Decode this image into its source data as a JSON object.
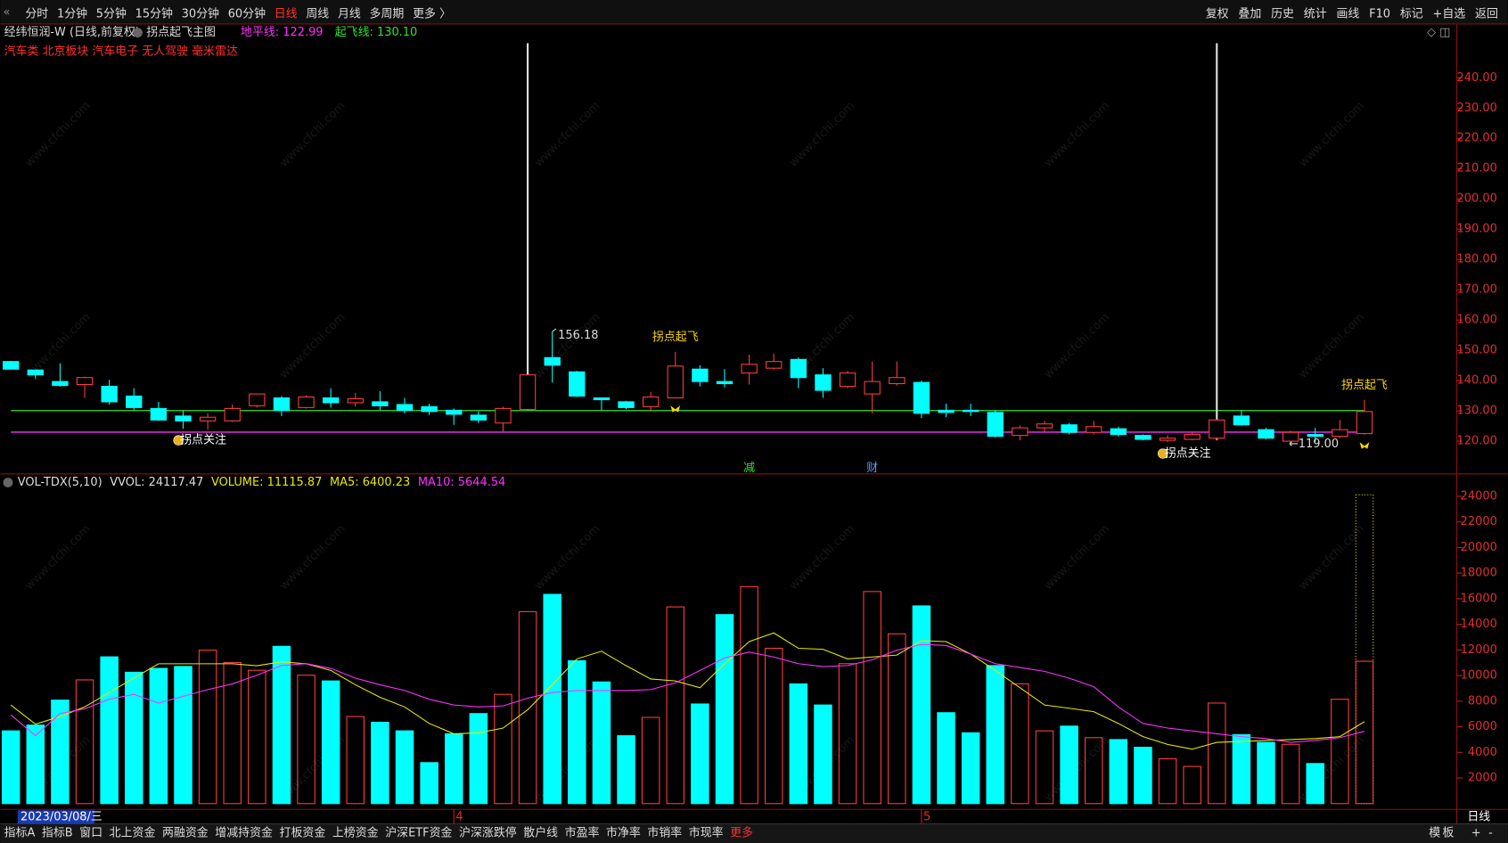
{
  "ui": {
    "toolbar_left": [
      "分时",
      "1分钟",
      "5分钟",
      "15分钟",
      "30分钟",
      "60分钟",
      "日线",
      "周线",
      "月线",
      "多周期",
      "更多 〉"
    ],
    "active_period_index": 6,
    "toolbar_right": [
      "复权",
      "叠加",
      "历史",
      "统计",
      "画线",
      "F10",
      "标记",
      "+自选",
      "返回"
    ],
    "stock": "经纬恒润-W (日线,前复权)",
    "indicator": "拐点起飞主图",
    "tags": "汽车类 北京板块 汽车电子 无人驾驶 毫米雷达",
    "cursor_date": "2023/03/08/三",
    "period_label": "日线",
    "bottom_tabs": [
      "指标A",
      "指标B",
      "窗口",
      "北上资金",
      "两融资金",
      "增减持资金",
      "打板资金",
      "上榜资金",
      "沪深ETF资金",
      "沪深涨跌停",
      "散户线",
      "市盈率",
      "市净率",
      "市销率",
      "市现率",
      "更多"
    ],
    "active_tab_index": 15,
    "bottom_right": [
      "模",
      "板",
      "+",
      "-"
    ],
    "watermark": "www.cfchi.com"
  },
  "chart_data": [
    {
      "type": "candlestick",
      "categories": [
        null,
        null,
        null,
        null,
        null,
        null,
        null,
        null,
        null,
        null,
        null,
        null,
        null,
        null,
        null,
        null,
        null,
        null,
        "4",
        null,
        null,
        null,
        null,
        null,
        null,
        null,
        null,
        null,
        null,
        null,
        null,
        null,
        null,
        null,
        null,
        null,
        null,
        "5",
        null,
        null,
        null,
        null,
        null,
        null,
        null,
        null,
        null,
        null,
        null,
        null,
        null,
        null,
        null,
        null,
        null,
        null
      ],
      "open": [
        146.3,
        143.5,
        139.7,
        138.7,
        138.1,
        134.9,
        130.8,
        128.3,
        126.7,
        126.7,
        131.7,
        134.3,
        131.1,
        134.3,
        132.7,
        133,
        132.1,
        131.4,
        130.2,
        128.6,
        126,
        130.5,
        147.6,
        142.9,
        134.3,
        133,
        131.4,
        134.3,
        143.8,
        139.7,
        142.5,
        144.1,
        147,
        141.9,
        138.1,
        135.6,
        139,
        139.4,
        130.2,
        130.2,
        129.5,
        121.9,
        124.4,
        125.4,
        122.9,
        124.1,
        121.9,
        120.3,
        120.6,
        121,
        128.3,
        123.8,
        120,
        122.2,
        121.6,
        122.5
      ],
      "high": [
        146.5,
        143.5,
        145.7,
        141.3,
        140.3,
        137.5,
        133,
        130.2,
        129.2,
        132.1,
        135.6,
        134.9,
        135.2,
        137.5,
        135.9,
        136.5,
        134.3,
        132.4,
        130.8,
        129.8,
        131.4,
        141.9,
        156.18,
        143.2,
        134.3,
        133.3,
        136.2,
        149.5,
        145.1,
        143.8,
        148.6,
        148.9,
        147.6,
        144.1,
        143.2,
        146.3,
        146.3,
        140,
        132.4,
        132.4,
        130.2,
        125.1,
        126.7,
        126,
        126.7,
        124.8,
        122.2,
        121.9,
        122.9,
        127.3,
        130.2,
        124.4,
        123.5,
        124.4,
        127,
        133.7
      ],
      "low": [
        143.5,
        140.5,
        138,
        134.3,
        132,
        130.2,
        126.7,
        124.1,
        123.8,
        126.3,
        131.1,
        128.3,
        130.8,
        131.1,
        131.4,
        130.2,
        129.2,
        128.6,
        125.4,
        126,
        123.2,
        130.2,
        139.4,
        134.6,
        130.2,
        130.5,
        129.8,
        134.3,
        138.1,
        137.8,
        138.7,
        143.5,
        137.5,
        134.3,
        137.5,
        129.2,
        138.4,
        127.6,
        127.9,
        128.3,
        121.3,
        120.3,
        123.2,
        122.2,
        122.2,
        121.6,
        120.3,
        119.7,
        120.3,
        120.3,
        125.1,
        120.6,
        119,
        119.7,
        121,
        122.2
      ],
      "close": [
        143.8,
        141.9,
        138.4,
        141,
        133,
        131.1,
        127,
        126.7,
        127.9,
        130.8,
        135.6,
        130.2,
        134.6,
        132.7,
        134,
        131.7,
        130.2,
        129.8,
        128.9,
        127,
        130.8,
        141.9,
        145.1,
        134.9,
        133.7,
        131.1,
        134.6,
        144.8,
        139.7,
        139,
        145.4,
        146.3,
        141,
        136.8,
        142.5,
        139.7,
        141,
        129.2,
        129.5,
        129.8,
        121.6,
        124.4,
        125.7,
        122.9,
        124.8,
        122.2,
        120.6,
        121,
        122.2,
        127,
        125.4,
        121,
        122.9,
        121.6,
        123.8,
        129.8
      ],
      "up_color": "#ff3c3c",
      "down_color": "#00ffff",
      "ylim": [
        109.2,
        251.4
      ],
      "yticks": [
        {
          "value": 120,
          "label": "120.00"
        },
        {
          "value": 130,
          "label": "130.00"
        },
        {
          "value": 140,
          "label": "140.00"
        },
        {
          "value": 150,
          "label": "150.00"
        },
        {
          "value": 160,
          "label": "160.00"
        },
        {
          "value": 170,
          "label": "170.00"
        },
        {
          "value": 180,
          "label": "180.00"
        },
        {
          "value": 190,
          "label": "190.00"
        },
        {
          "value": 200,
          "label": "200.00"
        },
        {
          "value": 210,
          "label": "210.00"
        },
        {
          "value": 220,
          "label": "220.00"
        },
        {
          "value": 230,
          "label": "230.00"
        },
        {
          "value": 240,
          "label": "240.00"
        }
      ],
      "lines": [
        {
          "label": "地平线: 122.99",
          "value": 122.99,
          "color": "#ff30ff"
        },
        {
          "label": "起飞线: 130.10",
          "value": 130.1,
          "color": "#30e030"
        }
      ],
      "highlight_indices": [
        21,
        49
      ],
      "annotations": [
        {
          "text": "156.18",
          "index": 22,
          "anchor": "high"
        },
        {
          "text": "←119.00",
          "index": 52,
          "anchor": "low"
        }
      ],
      "signals": [
        {
          "text": "拐点起飞",
          "index": 27,
          "anchor": "high"
        },
        {
          "text": "拐点起飞",
          "index": 55,
          "anchor": "high"
        },
        {
          "text": "拐点关注",
          "index": 7,
          "anchor": "low"
        },
        {
          "text": "拐点关注",
          "index": 47,
          "anchor": "low"
        }
      ],
      "events": [
        {
          "text": "减",
          "index": 30,
          "color": "#30e030"
        },
        {
          "text": "财",
          "index": 35,
          "color": "#50a0ff"
        }
      ]
    },
    {
      "type": "bar",
      "title": "VOL-TDX(5,10)",
      "vvol_label": "VVOL: 24117.47",
      "vvol": 24117.47,
      "volume_label": "VOLUME: 11115.87",
      "values": [
        5680,
        6130,
        8080,
        9660,
        11460,
        10260,
        10560,
        10710,
        11980,
        11010,
        10410,
        12280,
        10030,
        9580,
        6800,
        6350,
        5680,
        3200,
        5450,
        7030,
        8530,
        14990,
        16340,
        11160,
        9500,
        5300,
        6730,
        15360,
        7780,
        14760,
        16940,
        12130,
        9350,
        7700,
        10930,
        16560,
        13260,
        15440,
        7100,
        5530,
        10780,
        9350,
        5680,
        6050,
        5150,
        5000,
        4400,
        3500,
        2900,
        7850,
        5380,
        4780,
        4630,
        3130,
        8150,
        11115.87
      ],
      "series": [
        {
          "name": "MA5: 6400.23",
          "color": "#e8e800",
          "values": [
            7700,
            6200,
            6800,
            7550,
            8680,
            9800,
            10920,
            10920,
            10920,
            10920,
            10770,
            11070,
            10920,
            10400,
            9280,
            8300,
            7550,
            6260,
            5450,
            5520,
            5900,
            7330,
            9280,
            11300,
            11900,
            10770,
            9730,
            9580,
            9050,
            10920,
            12650,
            13330,
            12130,
            12050,
            11300,
            11450,
            11600,
            12730,
            12650,
            11680,
            10400,
            9050,
            7700,
            7450,
            7180,
            6260,
            5230,
            4620,
            4250,
            4780,
            4850,
            4930,
            5000,
            5080,
            5230,
            6400.23
          ]
        },
        {
          "name": "MA10: 5644.54",
          "color": "#ff30ff",
          "values": [
            6930,
            5300,
            7030,
            7400,
            8150,
            8530,
            7850,
            8380,
            8900,
            9350,
            10030,
            10780,
            10930,
            10560,
            9800,
            9280,
            8830,
            8150,
            7700,
            7550,
            7630,
            8230,
            8680,
            8830,
            8830,
            8830,
            8900,
            9430,
            10400,
            11380,
            11830,
            11450,
            10930,
            10700,
            10780,
            11230,
            11980,
            12430,
            12350,
            11680,
            10930,
            10630,
            10330,
            9800,
            9130,
            7550,
            6260,
            5900,
            5680,
            5450,
            5230,
            5080,
            4780,
            4930,
            5150,
            5644.54
          ]
        }
      ],
      "ylim": [
        0,
        25600
      ],
      "yticks": [
        2000,
        4000,
        6000,
        8000,
        10000,
        12000,
        14000,
        16000,
        18000,
        20000,
        22000,
        24000
      ]
    }
  ]
}
